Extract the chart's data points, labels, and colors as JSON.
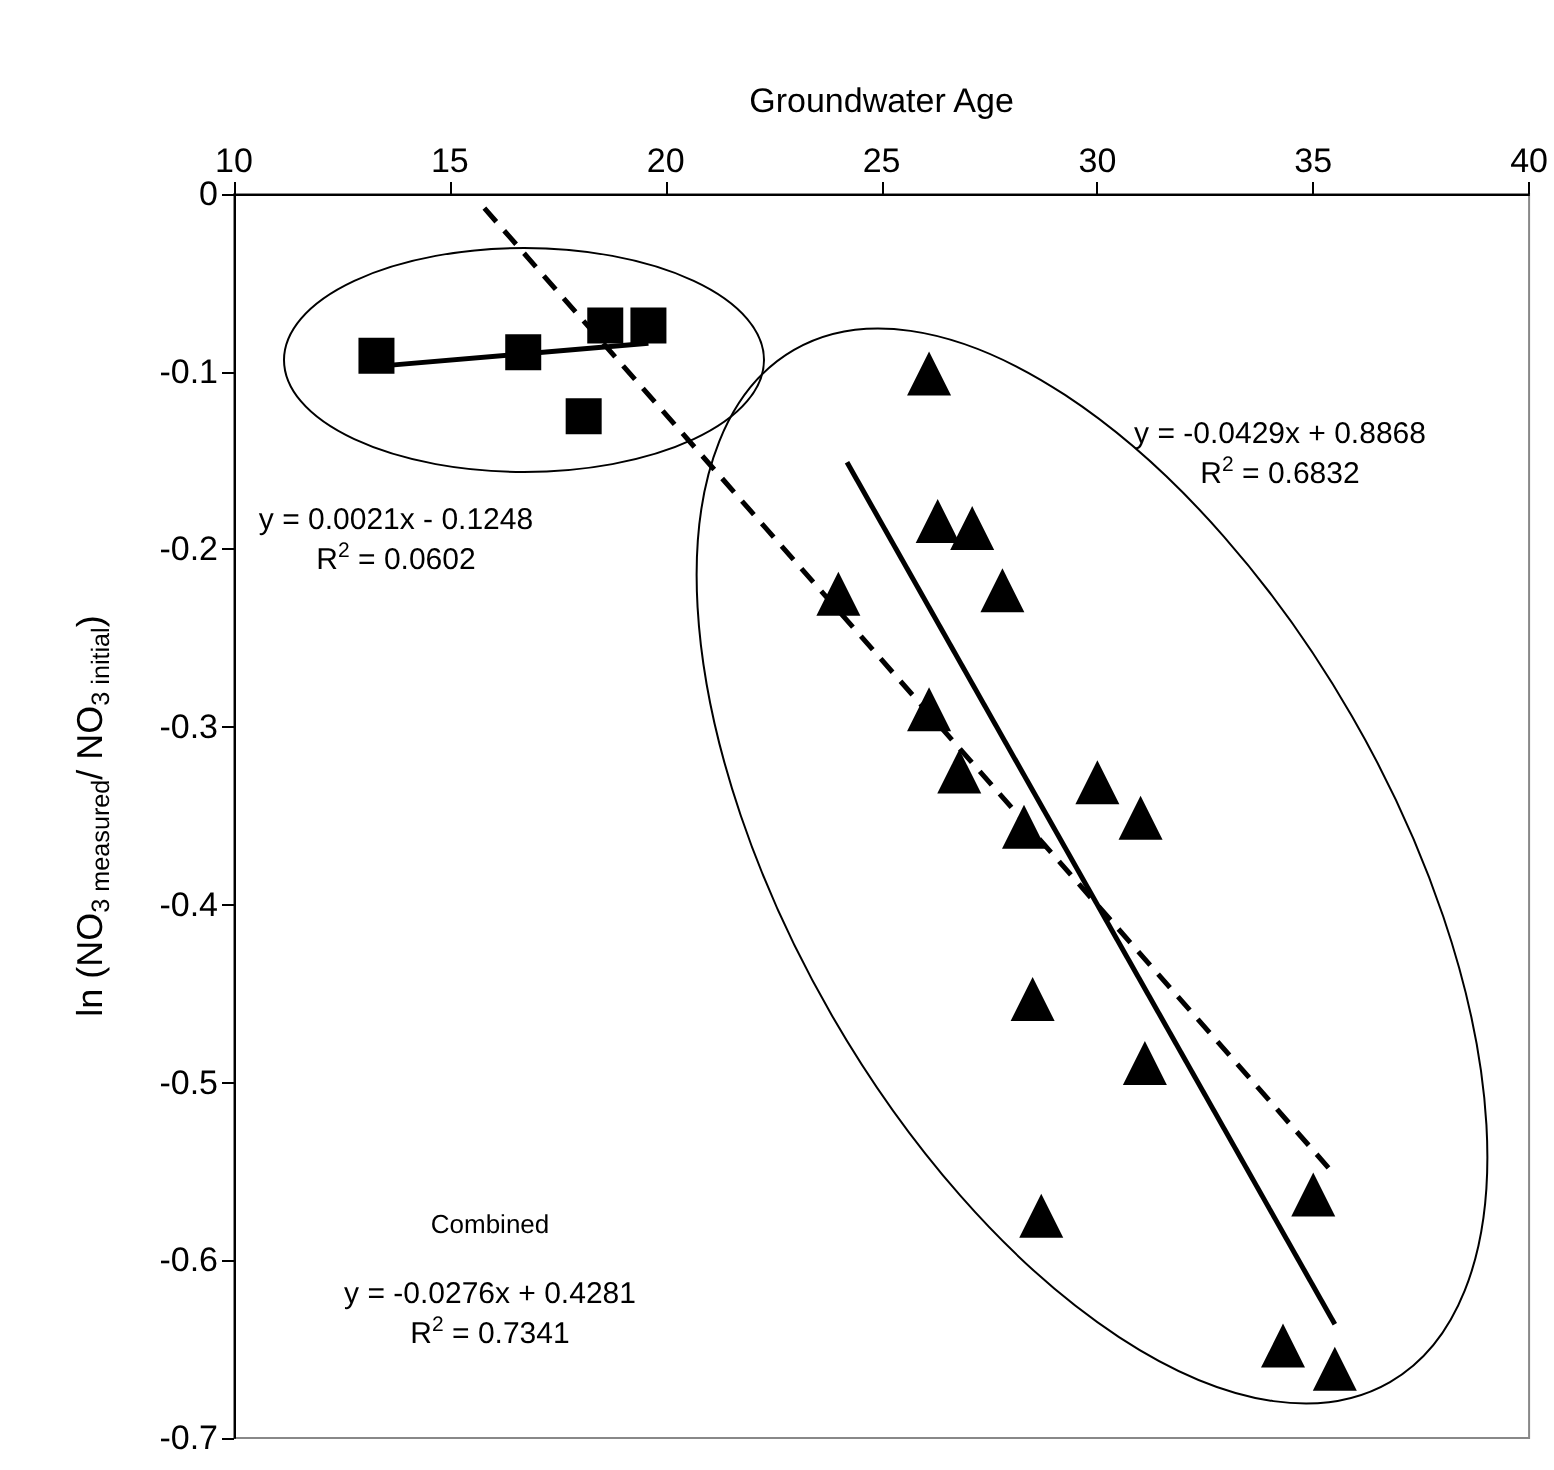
{
  "chart_data": {
    "type": "scatter",
    "xlabel": "Groundwater Age",
    "ylabel": "ln (NO$_{3 measured}$/ NO$_{3 initial}$)",
    "xlim": [
      10,
      40
    ],
    "xticks": [
      10,
      15,
      20,
      25,
      30,
      35,
      40
    ],
    "ylim": [
      -0.7,
      0
    ],
    "yticks": [
      -0.7,
      -0.6,
      -0.5,
      -0.4,
      -0.3,
      -0.2,
      -0.1,
      0
    ],
    "grid": false,
    "series": [
      {
        "marker": "square",
        "color": "#000000",
        "x": [
          13.3,
          16.7,
          18.6,
          19.6,
          18.1
        ],
        "values": [
          -0.091,
          -0.089,
          -0.074,
          -0.074,
          -0.125
        ]
      },
      {
        "marker": "triangle",
        "color": "#000000",
        "x": [
          26.1,
          26.3,
          27.1,
          27.8,
          24.0,
          26.1,
          26.8,
          28.3,
          30.0,
          31.0,
          28.5,
          31.1,
          35.0,
          28.7,
          34.3,
          35.5
        ],
        "values": [
          -0.101,
          -0.184,
          -0.188,
          -0.223,
          -0.225,
          -0.29,
          -0.325,
          -0.356,
          -0.331,
          -0.351,
          -0.453,
          -0.489,
          -0.563,
          -0.575,
          -0.648,
          -0.661
        ]
      },
      {
        "type": "line",
        "marker": "none",
        "line_style": "solid",
        "color": "#000000",
        "x": [
          13.3,
          19.6
        ],
        "values": [
          -0.097,
          -0.084
        ]
      },
      {
        "type": "line",
        "marker": "none",
        "line_style": "solid",
        "color": "#000000",
        "x": [
          24.2,
          35.5
        ],
        "values": [
          -0.151,
          -0.636
        ]
      },
      {
        "type": "line",
        "marker": "none",
        "line_style": "dashed",
        "color": "#000000",
        "x": [
          15.8,
          35.5
        ],
        "values": [
          -0.008,
          -0.552
        ]
      }
    ],
    "annotations": [
      "y = 0.0021x - 0.1248\nR$^{2}$ = 0.0602",
      "y = -0.0429x + 0.8868\nR$^{2}$ = 0.6832",
      "Combined",
      "y = -0.0276x + 0.4281\nR$^{2}$ = 0.7341"
    ]
  }
}
